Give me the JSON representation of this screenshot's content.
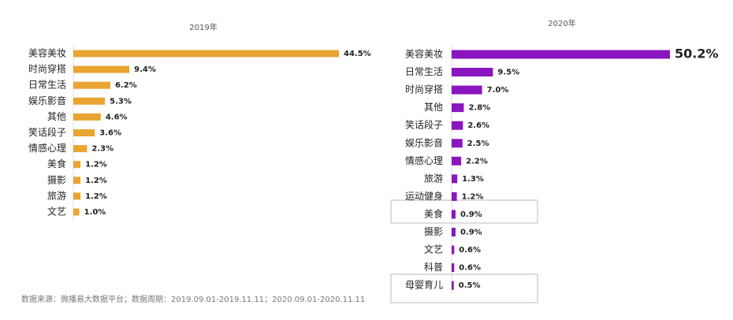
{
  "chart_data": [
    {
      "type": "bar",
      "title": "2019年",
      "color": "#e8a532",
      "categories": [
        "美容美妆",
        "时尚穿搭",
        "日常生活",
        "娱乐影音",
        "其他",
        "笑话段子",
        "情感心理",
        "美食",
        "摄影",
        "旅游",
        "文艺"
      ],
      "values": [
        44.5,
        9.4,
        6.2,
        5.3,
        4.6,
        3.6,
        2.3,
        1.2,
        1.2,
        1.2,
        1.0
      ],
      "value_labels": [
        "44.5%",
        "9.4%",
        "6.2%",
        "5.3%",
        "4.6%",
        "3.6%",
        "2.3%",
        "1.2%",
        "1.2%",
        "1.2%",
        "1.0%"
      ]
    },
    {
      "type": "bar",
      "title": "2020年",
      "color": "#8a16c0",
      "categories": [
        "美容美妆",
        "日常生活",
        "时尚穿搭",
        "其他",
        "笑话段子",
        "娱乐影音",
        "情感心理",
        "旅游",
        "运动健身",
        "美食",
        "摄影",
        "文艺",
        "科普",
        "母婴育儿"
      ],
      "values": [
        50.2,
        9.5,
        7.0,
        2.8,
        2.6,
        2.5,
        2.2,
        1.3,
        1.2,
        0.9,
        0.9,
        0.6,
        0.6,
        0.5
      ],
      "value_labels": [
        "50.2%",
        "9.5%",
        "7.0%",
        "2.8%",
        "2.6%",
        "2.5%",
        "2.2%",
        "1.3%",
        "1.2%",
        "0.9%",
        "0.9%",
        "0.6%",
        "0.6%",
        "0.5%"
      ]
    }
  ],
  "source": "数据来源：微播易大数据平台；数据周期：2019.09.01-2019.11.11；2020.09.01-2020.11.11"
}
